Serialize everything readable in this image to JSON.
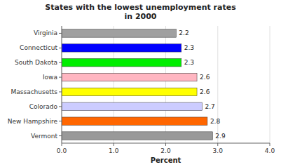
{
  "chart_data": {
    "type": "bar",
    "orientation": "horizontal",
    "title": "States with the lowest unemployment rates\nin 2000",
    "categories": [
      "Virginia",
      "Connecticut",
      "South Dakota",
      "Iowa",
      "Massachusetts",
      "Colorado",
      "New Hampshire",
      "Vermont"
    ],
    "values": [
      2.2,
      2.3,
      2.3,
      2.6,
      2.6,
      2.7,
      2.8,
      2.9
    ],
    "colors": [
      "#a0a0a0",
      "#0000ff",
      "#00ee00",
      "#ffb6c1",
      "#ffff00",
      "#ccccff",
      "#ff6600",
      "#999999"
    ],
    "xlabel": "Percent",
    "xlim": [
      0,
      4.0
    ],
    "xticks": [
      {
        "value": 0.0,
        "label": "0.0"
      },
      {
        "value": 1.0,
        "label": "1.0"
      },
      {
        "value": 2.0,
        "label": "2.0"
      },
      {
        "value": 3.0,
        "label": "3.0"
      },
      {
        "value": 4.0,
        "label": "4.0"
      }
    ],
    "grid": true,
    "data_labels": true
  }
}
